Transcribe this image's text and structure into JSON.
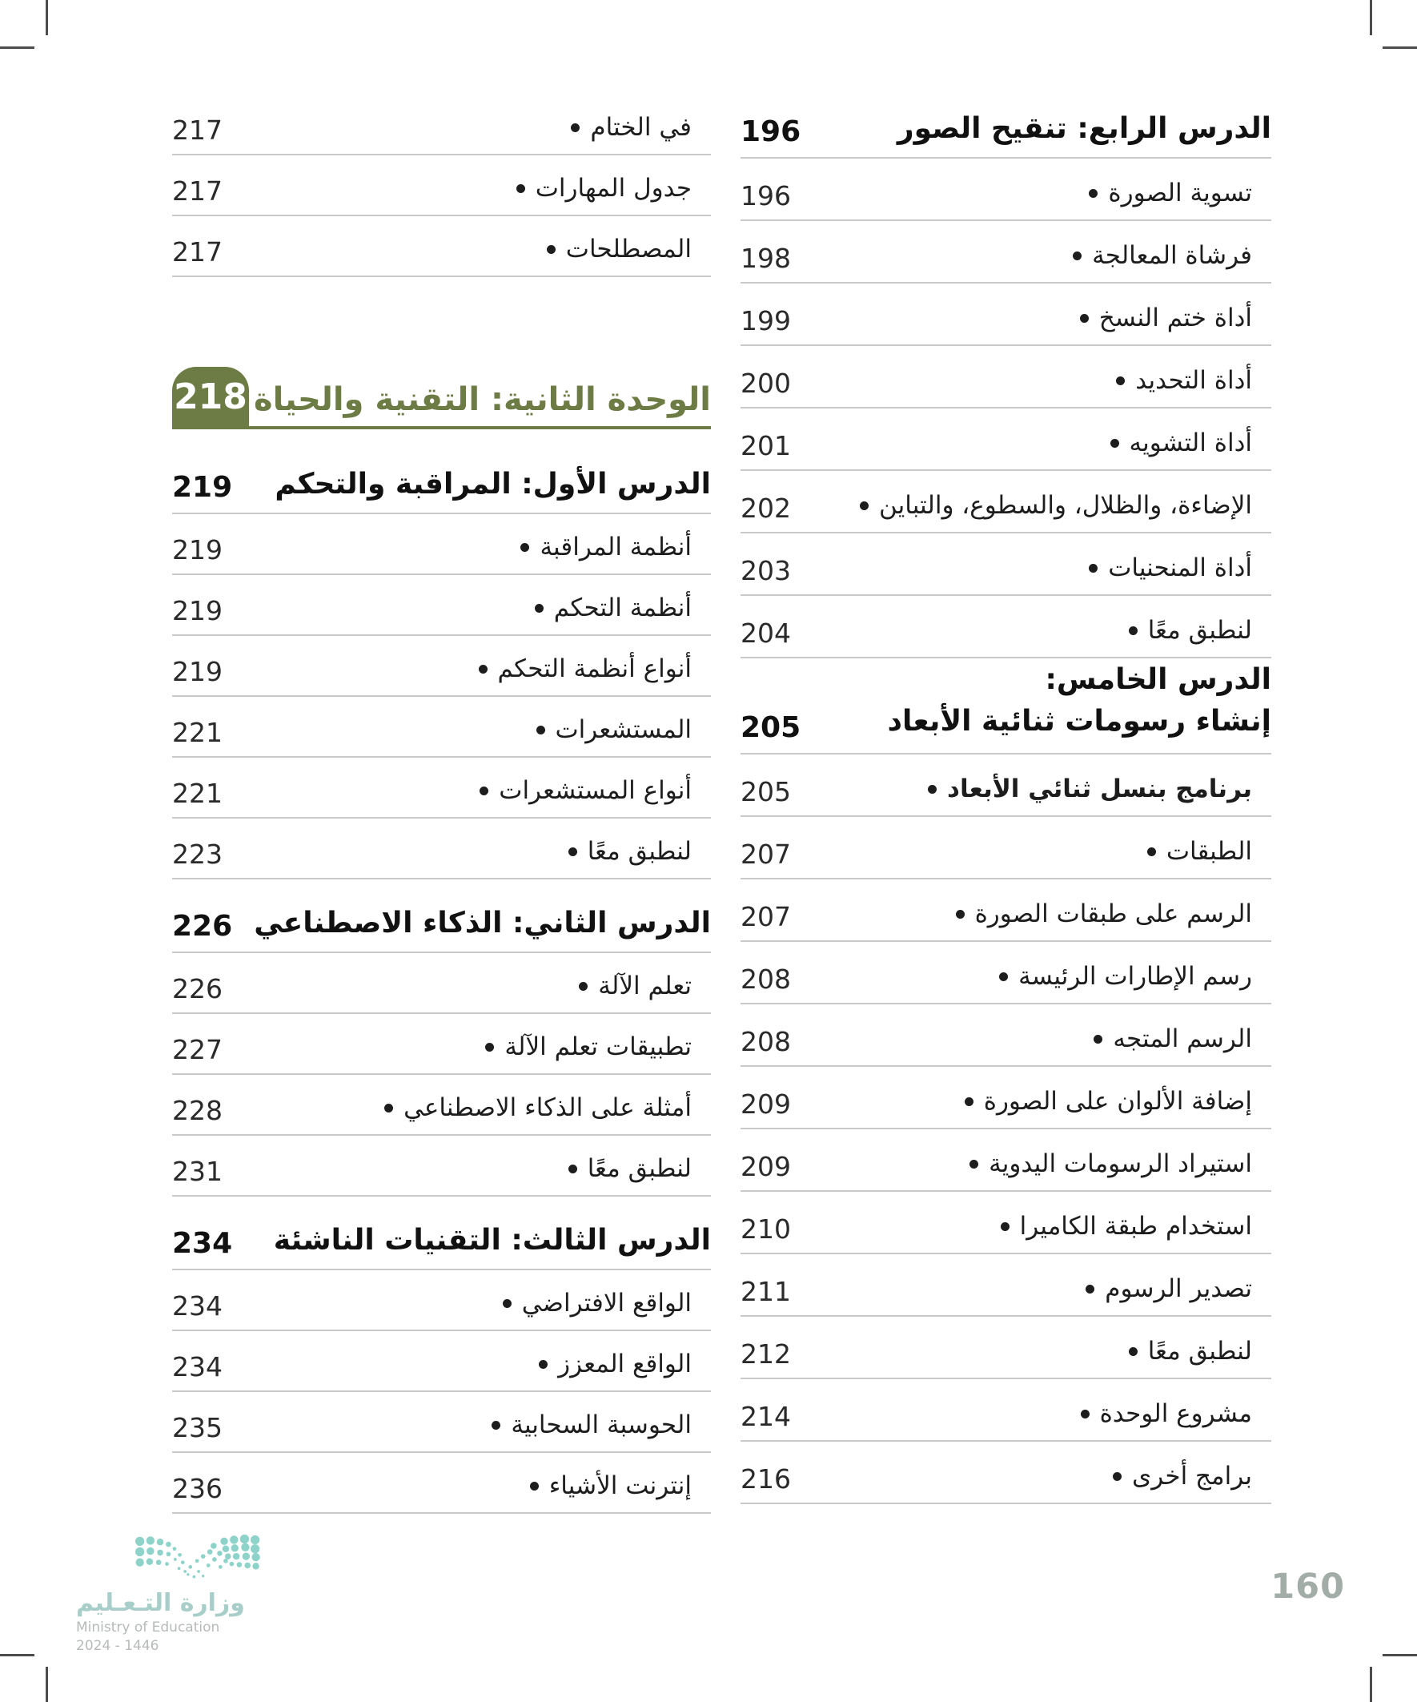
{
  "colors": {
    "green": "#6d7b45",
    "divider": "#c9c9c9",
    "text": "#1d1d1d",
    "teal": "#8ed3c9",
    "logo_arabic": "#a7cec8",
    "logo_gray": "#b7baba",
    "page_number": "#a3ada7",
    "crop": "#4d4d4d"
  },
  "footer": {
    "page_number": "160",
    "logo_arabic": "وزارة التـعـليم",
    "logo_english": "Ministry of Education",
    "logo_years": "2024 - 1446"
  },
  "columns": {
    "right": {
      "rows": [
        {
          "type": "header",
          "label": "الدرس الرابع: تنقيح الصور",
          "page": "196"
        },
        {
          "type": "item",
          "label": "تسوية الصورة",
          "page": "196"
        },
        {
          "type": "item",
          "label": "فرشاة المعالجة",
          "page": "198"
        },
        {
          "type": "item",
          "label": "أداة ختم النسخ",
          "page": "199"
        },
        {
          "type": "item",
          "label": "أداة التحديد",
          "page": "200"
        },
        {
          "type": "item",
          "label": "أداة التشويه",
          "page": "201"
        },
        {
          "type": "item",
          "label": "الإضاءة، والظلال،  والسطوع، والتباين",
          "page": "202"
        },
        {
          "type": "item",
          "label": "أداة المنحنيات",
          "page": "203"
        },
        {
          "type": "item",
          "label": "لنطبق معًا",
          "page": "204"
        },
        {
          "type": "header2",
          "label": "الدرس الخامس:",
          "label2": "إنشاء رسومات ثنائية الأبعاد",
          "page": "205"
        },
        {
          "type": "item",
          "bold": true,
          "label": "برنامج بنسل ثنائي الأبعاد",
          "page": "205"
        },
        {
          "type": "item",
          "label": "الطبقات",
          "page": "207"
        },
        {
          "type": "item",
          "label": "الرسم على طبقات الصورة",
          "page": "207"
        },
        {
          "type": "item",
          "label": "رسم الإطارات الرئيسة",
          "page": "208"
        },
        {
          "type": "item",
          "label": "الرسم المتجه",
          "page": "208"
        },
        {
          "type": "item",
          "label": "إضافة الألوان على الصورة",
          "page": "209"
        },
        {
          "type": "item",
          "label": "استيراد الرسومات اليدوية",
          "page": "209"
        },
        {
          "type": "item",
          "label": "استخدام طبقة الكاميرا",
          "page": "210"
        },
        {
          "type": "item",
          "label": "تصدير الرسوم",
          "page": "211"
        },
        {
          "type": "item",
          "label": "لنطبق معًا",
          "page": "212"
        },
        {
          "type": "item",
          "label": "مشروع الوحدة",
          "page": "214"
        },
        {
          "type": "item",
          "label": "برامج أخرى",
          "page": "216"
        }
      ]
    },
    "left": {
      "rows": [
        {
          "type": "item",
          "label": "في الختام",
          "page": "217"
        },
        {
          "type": "item",
          "label": "جدول المهارات",
          "page": "217"
        },
        {
          "type": "item",
          "label": "المصطلحات",
          "page": "217"
        },
        {
          "type": "unit",
          "label": "الوحدة الثانية: التقنية والحياة",
          "page": "218"
        },
        {
          "type": "header",
          "label": "الدرس الأول: المراقبة والتحكم",
          "page": "219"
        },
        {
          "type": "item",
          "label": "أنظمة المراقبة",
          "page": "219"
        },
        {
          "type": "item",
          "label": "أنظمة التحكم",
          "page": "219"
        },
        {
          "type": "item",
          "label": "أنواع أنظمة التحكم",
          "page": "219"
        },
        {
          "type": "item",
          "label": "المستشعرات",
          "page": "221"
        },
        {
          "type": "item",
          "label": "أنواع المستشعرات",
          "page": "221"
        },
        {
          "type": "item",
          "label": "لنطبق معًا",
          "page": "223"
        },
        {
          "type": "header",
          "label": "الدرس الثاني: الذكاء الاصطناعي",
          "page": "226"
        },
        {
          "type": "item",
          "label": "تعلم الآلة",
          "page": "226"
        },
        {
          "type": "item",
          "label": "تطبيقات تعلم الآلة",
          "page": "227"
        },
        {
          "type": "item",
          "label": "أمثلة على الذكاء الاصطناعي",
          "page": "228"
        },
        {
          "type": "item",
          "label": "لنطبق معًا",
          "page": "231"
        },
        {
          "type": "header",
          "label": "الدرس الثالث: التقنيات الناشئة",
          "page": "234"
        },
        {
          "type": "item",
          "label": "الواقع الافتراضي",
          "page": "234"
        },
        {
          "type": "item",
          "label": "الواقع المعزز",
          "page": "234"
        },
        {
          "type": "item",
          "label": "الحوسبة السحابية",
          "page": "235"
        },
        {
          "type": "item",
          "label": "إنترنت الأشياء",
          "page": "236"
        }
      ]
    }
  }
}
